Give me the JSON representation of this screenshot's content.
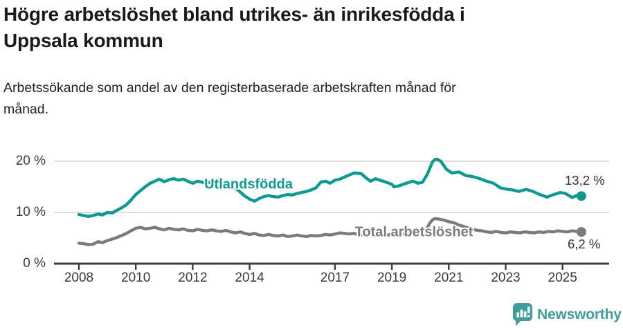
{
  "header": {
    "title": "Högre arbetslöshet bland utrikes- än inrikesfödda i Uppsala kommun",
    "title_lines": [
      "Högre arbetslöshet bland utrikes- än inrikesfödda i",
      "Uppsala kommun"
    ],
    "subtitle": "Arbetssökande som andel av den registerbaserade arbetskraften månad för månad.",
    "subtitle_lines": [
      "Arbetssökande som andel av den registerbaserade arbetskraften månad för",
      "månad."
    ]
  },
  "chart_data": {
    "type": "line",
    "title": "Högre arbetslöshet bland utrikes- än inrikesfödda i Uppsala kommun",
    "subtitle": "Arbetssökande som andel av den registerbaserade arbetskraften månad för månad.",
    "xlabel": "",
    "ylabel": "",
    "unit": "%",
    "grid": "horizontal",
    "legend_position": "inline-labels",
    "x_axis": {
      "ticks": [
        "2008",
        "2010",
        "2012",
        "2014",
        "2017",
        "2019",
        "2021",
        "2023",
        "2025"
      ],
      "tick_values": [
        2008,
        2010,
        2012,
        2014,
        2017,
        2019,
        2021,
        2023,
        2025
      ],
      "range": [
        2007.1,
        2026.6
      ]
    },
    "y_axis": {
      "tick_labels": [
        "0 %",
        "10 %",
        "20 %"
      ],
      "tick_values": [
        0,
        10,
        20
      ],
      "range": [
        0,
        24
      ]
    },
    "series": [
      {
        "name": "Utlandsfödda",
        "color": "#0c9a91",
        "end_label": "13,2 %",
        "end_value": 13.2,
        "points": [
          [
            2008.0,
            9.6
          ],
          [
            2008.17,
            9.4
          ],
          [
            2008.33,
            9.2
          ],
          [
            2008.5,
            9.4
          ],
          [
            2008.67,
            9.7
          ],
          [
            2008.83,
            9.5
          ],
          [
            2009.0,
            10.0
          ],
          [
            2009.17,
            9.9
          ],
          [
            2009.33,
            10.4
          ],
          [
            2009.5,
            10.9
          ],
          [
            2009.67,
            11.5
          ],
          [
            2009.83,
            12.4
          ],
          [
            2010.0,
            13.5
          ],
          [
            2010.17,
            14.3
          ],
          [
            2010.33,
            15.0
          ],
          [
            2010.5,
            15.7
          ],
          [
            2010.67,
            16.1
          ],
          [
            2010.83,
            16.5
          ],
          [
            2011.0,
            16.0
          ],
          [
            2011.17,
            16.4
          ],
          [
            2011.33,
            16.6
          ],
          [
            2011.5,
            16.3
          ],
          [
            2011.67,
            16.5
          ],
          [
            2011.83,
            16.1
          ],
          [
            2012.0,
            15.7
          ],
          [
            2012.17,
            16.1
          ],
          [
            2012.33,
            15.9
          ],
          [
            2012.5,
            15.7
          ],
          [
            2012.67,
            16.0
          ],
          [
            2012.83,
            15.6
          ],
          [
            2013.0,
            15.4
          ],
          [
            2013.17,
            15.6
          ],
          [
            2013.33,
            15.2
          ],
          [
            2013.5,
            14.7
          ],
          [
            2013.67,
            14.0
          ],
          [
            2013.83,
            13.2
          ],
          [
            2014.0,
            12.6
          ],
          [
            2014.17,
            12.2
          ],
          [
            2014.33,
            12.7
          ],
          [
            2014.5,
            13.1
          ],
          [
            2014.67,
            13.3
          ],
          [
            2014.83,
            13.1
          ],
          [
            2015.0,
            13.0
          ],
          [
            2015.17,
            13.3
          ],
          [
            2015.33,
            13.5
          ],
          [
            2015.5,
            13.4
          ],
          [
            2015.67,
            13.7
          ],
          [
            2015.83,
            13.9
          ],
          [
            2016.0,
            14.1
          ],
          [
            2016.17,
            14.4
          ],
          [
            2016.33,
            14.8
          ],
          [
            2016.5,
            15.9
          ],
          [
            2016.67,
            16.1
          ],
          [
            2016.83,
            15.7
          ],
          [
            2017.0,
            16.3
          ],
          [
            2017.17,
            16.5
          ],
          [
            2017.33,
            16.9
          ],
          [
            2017.5,
            17.3
          ],
          [
            2017.67,
            17.7
          ],
          [
            2017.92,
            17.6
          ],
          [
            2018.08,
            16.8
          ],
          [
            2018.25,
            16.1
          ],
          [
            2018.42,
            16.6
          ],
          [
            2018.58,
            16.3
          ],
          [
            2018.75,
            16.0
          ],
          [
            2019.0,
            15.5
          ],
          [
            2019.08,
            15.0
          ],
          [
            2019.25,
            15.2
          ],
          [
            2019.5,
            15.7
          ],
          [
            2019.75,
            16.1
          ],
          [
            2019.92,
            15.7
          ],
          [
            2020.08,
            15.9
          ],
          [
            2020.25,
            17.5
          ],
          [
            2020.42,
            19.8
          ],
          [
            2020.5,
            20.3
          ],
          [
            2020.58,
            20.4
          ],
          [
            2020.72,
            20.0
          ],
          [
            2020.92,
            18.4
          ],
          [
            2021.11,
            17.7
          ],
          [
            2021.36,
            17.9
          ],
          [
            2021.6,
            17.2
          ],
          [
            2021.84,
            17.0
          ],
          [
            2022.09,
            16.6
          ],
          [
            2022.33,
            16.1
          ],
          [
            2022.57,
            15.7
          ],
          [
            2022.82,
            14.8
          ],
          [
            2022.99,
            14.6
          ],
          [
            2023.23,
            14.4
          ],
          [
            2023.47,
            14.1
          ],
          [
            2023.72,
            14.5
          ],
          [
            2023.96,
            14.1
          ],
          [
            2024.2,
            13.5
          ],
          [
            2024.45,
            13.0
          ],
          [
            2024.69,
            13.5
          ],
          [
            2024.93,
            13.9
          ],
          [
            2025.1,
            13.7
          ],
          [
            2025.25,
            13.2
          ],
          [
            2025.35,
            12.9
          ],
          [
            2025.49,
            13.3
          ],
          [
            2025.66,
            13.2
          ]
        ]
      },
      {
        "name": "Total arbetslöshet",
        "color": "#7b7b7d",
        "end_label": "6,2 %",
        "end_value": 6.2,
        "points": [
          [
            2008.0,
            4.0
          ],
          [
            2008.17,
            3.9
          ],
          [
            2008.33,
            3.7
          ],
          [
            2008.5,
            3.8
          ],
          [
            2008.67,
            4.3
          ],
          [
            2008.83,
            4.1
          ],
          [
            2009.0,
            4.5
          ],
          [
            2009.17,
            4.8
          ],
          [
            2009.33,
            5.1
          ],
          [
            2009.5,
            5.5
          ],
          [
            2009.67,
            5.9
          ],
          [
            2009.83,
            6.4
          ],
          [
            2010.0,
            6.9
          ],
          [
            2010.17,
            7.1
          ],
          [
            2010.33,
            6.8
          ],
          [
            2010.5,
            6.9
          ],
          [
            2010.67,
            7.1
          ],
          [
            2010.83,
            6.8
          ],
          [
            2011.0,
            6.6
          ],
          [
            2011.17,
            6.9
          ],
          [
            2011.33,
            6.7
          ],
          [
            2011.5,
            6.6
          ],
          [
            2011.67,
            6.8
          ],
          [
            2011.83,
            6.5
          ],
          [
            2012.0,
            6.4
          ],
          [
            2012.17,
            6.7
          ],
          [
            2012.33,
            6.5
          ],
          [
            2012.5,
            6.4
          ],
          [
            2012.67,
            6.6
          ],
          [
            2012.83,
            6.4
          ],
          [
            2013.0,
            6.3
          ],
          [
            2013.17,
            6.5
          ],
          [
            2013.33,
            6.2
          ],
          [
            2013.5,
            6.0
          ],
          [
            2013.67,
            6.2
          ],
          [
            2013.83,
            5.9
          ],
          [
            2014.0,
            5.7
          ],
          [
            2014.17,
            5.9
          ],
          [
            2014.33,
            5.6
          ],
          [
            2014.5,
            5.5
          ],
          [
            2014.67,
            5.7
          ],
          [
            2014.83,
            5.5
          ],
          [
            2015.0,
            5.4
          ],
          [
            2015.17,
            5.6
          ],
          [
            2015.33,
            5.3
          ],
          [
            2015.5,
            5.4
          ],
          [
            2015.67,
            5.6
          ],
          [
            2015.83,
            5.4
          ],
          [
            2016.0,
            5.3
          ],
          [
            2016.17,
            5.5
          ],
          [
            2016.33,
            5.4
          ],
          [
            2016.5,
            5.5
          ],
          [
            2016.67,
            5.7
          ],
          [
            2016.83,
            5.6
          ],
          [
            2017.0,
            5.8
          ],
          [
            2017.17,
            6.0
          ],
          [
            2017.33,
            5.9
          ],
          [
            2017.5,
            5.8
          ],
          [
            2017.67,
            5.9
          ],
          [
            2017.83,
            5.7
          ],
          [
            2018.0,
            5.6
          ],
          [
            2018.17,
            5.8
          ],
          [
            2018.33,
            5.6
          ],
          [
            2018.5,
            5.5
          ],
          [
            2018.67,
            5.7
          ],
          [
            2018.83,
            5.6
          ],
          [
            2019.0,
            5.7
          ],
          [
            2019.17,
            5.9
          ],
          [
            2019.33,
            5.8
          ],
          [
            2019.5,
            5.7
          ],
          [
            2019.67,
            5.9
          ],
          [
            2019.83,
            5.8
          ],
          [
            2020.0,
            5.7
          ],
          [
            2020.17,
            6.2
          ],
          [
            2020.33,
            7.9
          ],
          [
            2020.42,
            8.5
          ],
          [
            2020.5,
            8.8
          ],
          [
            2020.67,
            8.7
          ],
          [
            2020.83,
            8.5
          ],
          [
            2021.0,
            8.2
          ],
          [
            2021.17,
            8.0
          ],
          [
            2021.33,
            7.6
          ],
          [
            2021.5,
            7.3
          ],
          [
            2021.67,
            7.0
          ],
          [
            2021.83,
            6.7
          ],
          [
            2022.0,
            6.5
          ],
          [
            2022.17,
            6.4
          ],
          [
            2022.33,
            6.2
          ],
          [
            2022.5,
            6.1
          ],
          [
            2022.67,
            6.3
          ],
          [
            2022.83,
            6.1
          ],
          [
            2023.0,
            6.0
          ],
          [
            2023.17,
            6.2
          ],
          [
            2023.33,
            6.1
          ],
          [
            2023.5,
            6.0
          ],
          [
            2023.67,
            6.2
          ],
          [
            2023.83,
            6.1
          ],
          [
            2024.0,
            6.0
          ],
          [
            2024.17,
            6.2
          ],
          [
            2024.33,
            6.1
          ],
          [
            2024.5,
            6.3
          ],
          [
            2024.67,
            6.2
          ],
          [
            2024.83,
            6.4
          ],
          [
            2025.0,
            6.3
          ],
          [
            2025.17,
            6.2
          ],
          [
            2025.33,
            6.4
          ],
          [
            2025.5,
            6.3
          ],
          [
            2025.66,
            6.2
          ]
        ]
      }
    ],
    "colors": {
      "axis": "#3e3e3e",
      "gridline": "#d8d8d8",
      "text": "#3a3a3a"
    }
  },
  "footer": {
    "brand": "Newsworthy",
    "brand_color": "#3f9e99",
    "logo_icon": "newsworthy-bar-chart-speech-bubble-icon"
  }
}
